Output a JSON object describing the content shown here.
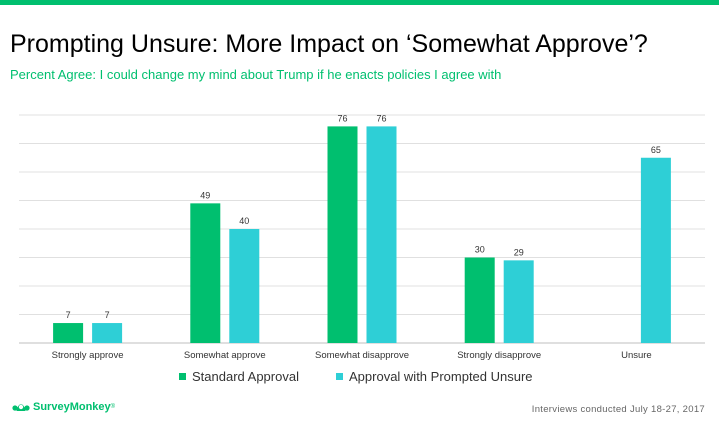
{
  "header": {
    "title": "Prompting Unsure: More Impact on ‘Somewhat Approve’?",
    "subtitle": "Percent Agree: I could change my mind about Trump if he enacts policies I agree with"
  },
  "footer": {
    "brand": "SurveyMonkey",
    "brand_tm": "®",
    "note": "Interviews conducted July 18-27, 2017"
  },
  "colors": {
    "accent": "#00bf6f",
    "series_1": "#00bf6f",
    "series_2": "#2ecfd6"
  },
  "chart_data": {
    "type": "bar",
    "categories": [
      "Strongly approve",
      "Somewhat approve",
      "Somewhat disapprove",
      "Strongly disapprove",
      "Unsure"
    ],
    "series": [
      {
        "name": "Standard Approval",
        "values": [
          7,
          49,
          76,
          30,
          null
        ],
        "color": "#00bf6f"
      },
      {
        "name": "Approval with Prompted Unsure",
        "values": [
          7,
          40,
          76,
          29,
          65
        ],
        "color": "#2ecfd6"
      }
    ],
    "ylim": [
      0,
      80
    ],
    "grid": true,
    "legend": "bottom",
    "data_labels": true
  }
}
